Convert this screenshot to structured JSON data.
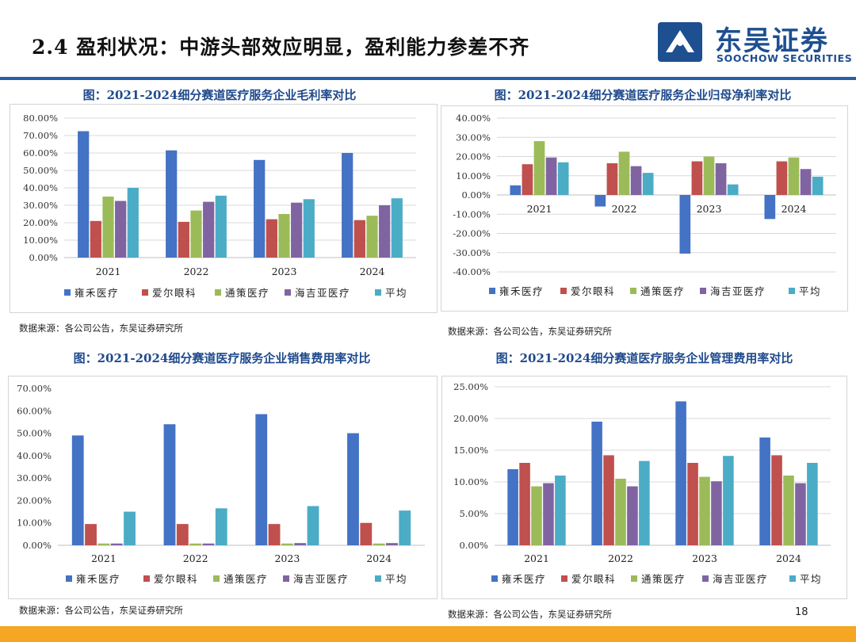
{
  "header": {
    "title": "2.4 盈利状况：中游头部效应明显，盈利能力参差不齐",
    "logo_cn": "东吴证券",
    "logo_en": "SOOCHOW SECURITIES"
  },
  "colors": {
    "rule": "#2860a8",
    "footer": "#f5a623",
    "series": [
      "#4472c4",
      "#c0504d",
      "#9bbb59",
      "#8064a2",
      "#4bacc6"
    ]
  },
  "page_number": "18",
  "chart_data": [
    {
      "type": "bar",
      "title": "图：2021-2024细分赛道医疗服务企业毛利率对比",
      "categories": [
        "2021",
        "2022",
        "2023",
        "2024"
      ],
      "series": [
        {
          "name": "雍禾医疗",
          "values": [
            72.5,
            61.5,
            56.0,
            60.0
          ]
        },
        {
          "name": "爱尔眼科",
          "values": [
            21.0,
            20.5,
            22.0,
            21.5
          ]
        },
        {
          "name": "通策医疗",
          "values": [
            35.0,
            27.0,
            25.0,
            24.0
          ]
        },
        {
          "name": "海吉亚医疗",
          "values": [
            32.5,
            32.0,
            31.5,
            30.0
          ]
        },
        {
          "name": "平均",
          "values": [
            40.0,
            35.5,
            33.5,
            34.0
          ]
        }
      ],
      "ylim": [
        0,
        80
      ],
      "ystep": 10,
      "yticks": [
        "0.00%",
        "10.00%",
        "20.00%",
        "30.00%",
        "40.00%",
        "50.00%",
        "60.00%",
        "70.00%",
        "80.00%"
      ],
      "xlabel": "",
      "ylabel": "",
      "legend": "bottom",
      "category_labels": "bottom",
      "grid": true,
      "source": "数据来源：各公司公告，东吴证券研究所"
    },
    {
      "type": "bar",
      "title": "图：2021-2024细分赛道医疗服务企业归母净利率对比",
      "categories": [
        "2021",
        "2022",
        "2023",
        "2024"
      ],
      "series": [
        {
          "name": "雍禾医疗",
          "values": [
            5.0,
            -6.0,
            -30.5,
            -12.5
          ]
        },
        {
          "name": "爱尔眼科",
          "values": [
            16.0,
            16.5,
            17.5,
            17.5
          ]
        },
        {
          "name": "通策医疗",
          "values": [
            28.0,
            22.5,
            20.0,
            19.5
          ]
        },
        {
          "name": "海吉亚医疗",
          "values": [
            19.5,
            15.0,
            16.5,
            13.5
          ]
        },
        {
          "name": "平均",
          "values": [
            17.0,
            11.5,
            5.5,
            9.5
          ]
        }
      ],
      "ylim": [
        -40,
        40
      ],
      "ystep": 10,
      "yticks": [
        "-40.00%",
        "-30.00%",
        "-20.00%",
        "-10.00%",
        "0.00%",
        "10.00%",
        "20.00%",
        "30.00%",
        "40.00%"
      ],
      "xlabel": "",
      "ylabel": "",
      "legend": "bottom",
      "category_labels": "zero-line",
      "grid": true,
      "source": "数据来源：各公司公告，东吴证券研究所"
    },
    {
      "type": "bar",
      "title": "图：2021-2024细分赛道医疗服务企业销售费用率对比",
      "categories": [
        "2021",
        "2022",
        "2023",
        "2024"
      ],
      "series": [
        {
          "name": "雍禾医疗",
          "values": [
            49.0,
            54.0,
            58.5,
            50.0
          ]
        },
        {
          "name": "爱尔眼科",
          "values": [
            9.5,
            9.5,
            9.5,
            10.0
          ]
        },
        {
          "name": "通策医疗",
          "values": [
            0.8,
            0.8,
            0.8,
            0.8
          ]
        },
        {
          "name": "海吉亚医疗",
          "values": [
            0.8,
            0.8,
            1.0,
            1.0
          ]
        },
        {
          "name": "平均",
          "values": [
            15.0,
            16.5,
            17.5,
            15.5
          ]
        }
      ],
      "ylim": [
        0,
        70
      ],
      "ystep": 10,
      "yticks": [
        "0.00%",
        "10.00%",
        "20.00%",
        "30.00%",
        "40.00%",
        "50.00%",
        "60.00%",
        "70.00%"
      ],
      "xlabel": "",
      "ylabel": "",
      "legend": "bottom",
      "category_labels": "bottom",
      "grid": false,
      "source": "数据来源：各公司公告，东吴证券研究所"
    },
    {
      "type": "bar",
      "title": "图：2021-2024细分赛道医疗服务企业管理费用率对比",
      "categories": [
        "2021",
        "2022",
        "2023",
        "2024"
      ],
      "series": [
        {
          "name": "雍禾医疗",
          "values": [
            12.0,
            19.5,
            22.7,
            17.0
          ]
        },
        {
          "name": "爱尔眼科",
          "values": [
            13.0,
            14.2,
            13.0,
            14.2
          ]
        },
        {
          "name": "通策医疗",
          "values": [
            9.3,
            10.5,
            10.8,
            11.0
          ]
        },
        {
          "name": "海吉亚医疗",
          "values": [
            9.8,
            9.3,
            10.1,
            9.8
          ]
        },
        {
          "name": "平均",
          "values": [
            11.0,
            13.3,
            14.1,
            13.0
          ]
        }
      ],
      "ylim": [
        0,
        25
      ],
      "ystep": 5,
      "yticks": [
        "0.00%",
        "5.00%",
        "10.00%",
        "15.00%",
        "20.00%",
        "25.00%"
      ],
      "xlabel": "",
      "ylabel": "",
      "legend": "bottom",
      "category_labels": "bottom",
      "grid": true,
      "source": "数据来源：各公司公告，东吴证券研究所"
    }
  ]
}
